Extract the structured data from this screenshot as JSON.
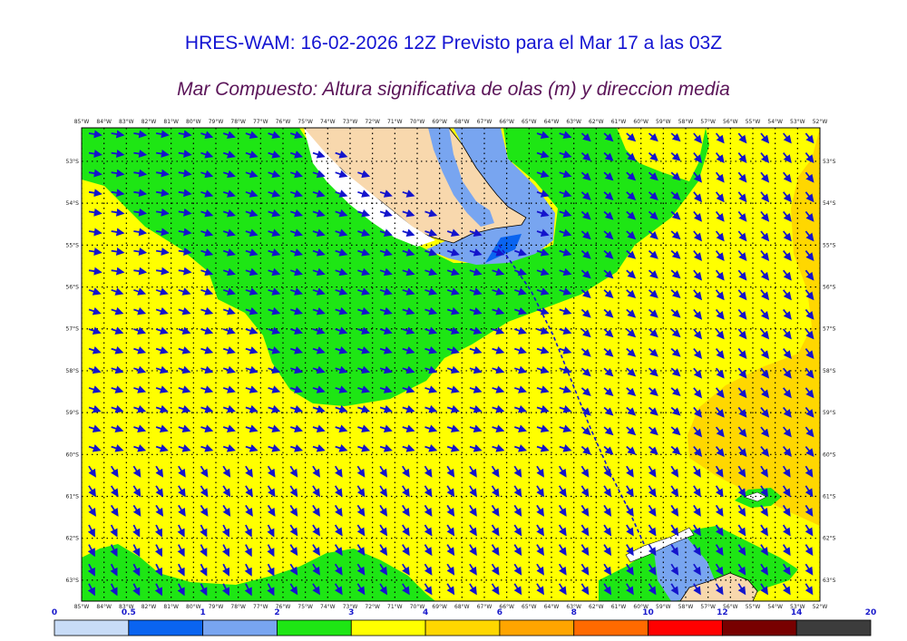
{
  "header": {
    "title": "HRES-WAM: 16-02-2026 12Z Previsto para el Mar 17 a las 03Z",
    "subtitle": "Mar Compuesto: Altura significativa de olas (m) y direccion media"
  },
  "map": {
    "projection": "lat-lon",
    "lon_range": [
      -85,
      -52
    ],
    "lat_range": [
      -63.5,
      -52.2
    ],
    "lon_ticks": [
      "85°W",
      "84°W",
      "83°W",
      "82°W",
      "81°W",
      "80°W",
      "79°W",
      "78°W",
      "77°W",
      "76°W",
      "75°W",
      "74°W",
      "73°W",
      "72°W",
      "71°W",
      "70°W",
      "69°W",
      "68°W",
      "67°W",
      "66°W",
      "65°W",
      "64°W",
      "63°W",
      "62°W",
      "61°W",
      "60°W",
      "59°W",
      "58°W",
      "57°W",
      "56°W",
      "55°W",
      "54°W",
      "53°W",
      "52°W"
    ],
    "lat_ticks": [
      "53°S",
      "54°S",
      "55°S",
      "56°S",
      "57°S",
      "58°S",
      "59°S",
      "60°S",
      "61°S",
      "62°S",
      "63°S"
    ],
    "arrow_color": "#1414cc",
    "land_color": "#f8d8ad",
    "ship_track_color": "#1414cc"
  },
  "colorbar": {
    "ticks": [
      "0",
      "0.5",
      "1",
      "2",
      "3",
      "4",
      "6",
      "8",
      "10",
      "12",
      "14",
      "20"
    ],
    "colors": [
      "#c8dcf7",
      "#0a64f0",
      "#78a5f0",
      "#1ee614",
      "#ffff00",
      "#ffd700",
      "#ffa500",
      "#ff6a00",
      "#ff0000",
      "#780000",
      "#3c3c3c"
    ]
  }
}
